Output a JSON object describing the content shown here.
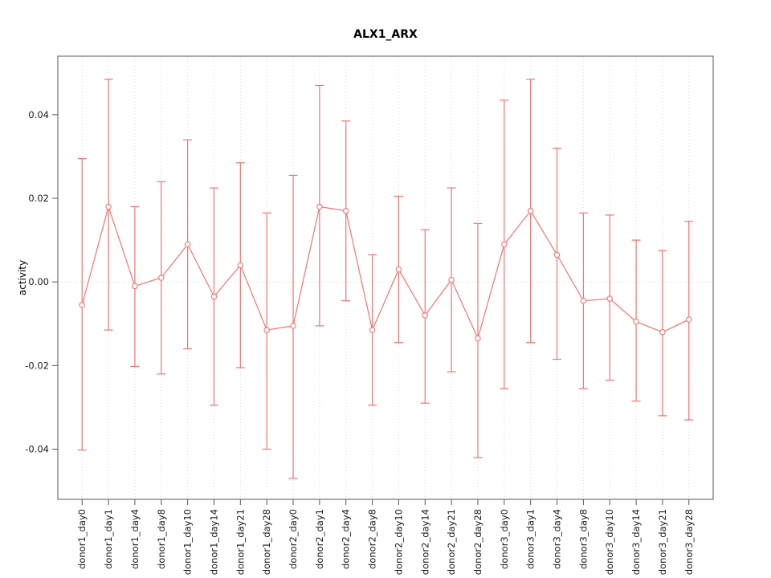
{
  "chart_data": {
    "type": "line",
    "title": "ALX1_ARX",
    "ylabel": "activity",
    "xlabel": "",
    "ylim": [
      -0.052,
      0.054
    ],
    "grid": {
      "vertical_dotted": true,
      "zero_line_dotted": true
    },
    "legend": "none",
    "accent_color": "#f4736e",
    "grid_color": "#d9d9d9",
    "axis_color": "#555555",
    "yticks": {
      "values": [
        -0.04,
        -0.02,
        0.0,
        0.02,
        0.04
      ],
      "labels": [
        "-0.04",
        "-0.02",
        "0.00",
        "0.02",
        "0.04"
      ]
    },
    "categories": [
      "donor1_day0",
      "donor1_day1",
      "donor1_day4",
      "donor1_day8",
      "donor1_day10",
      "donor1_day14",
      "donor1_day21",
      "donor1_day28",
      "donor2_day0",
      "donor2_day1",
      "donor2_day4",
      "donor2_day8",
      "donor2_day10",
      "donor2_day14",
      "donor2_day21",
      "donor2_day28",
      "donor3_day0",
      "donor3_day1",
      "donor3_day4",
      "donor3_day8",
      "donor3_day10",
      "donor3_day14",
      "donor3_day21",
      "donor3_day28"
    ],
    "series": [
      {
        "name": "activity",
        "means": [
          -0.0055,
          0.018,
          -0.001,
          0.001,
          0.009,
          -0.0035,
          0.004,
          -0.0115,
          -0.0105,
          0.018,
          0.017,
          -0.0115,
          0.003,
          -0.008,
          0.0005,
          -0.0135,
          0.009,
          0.017,
          0.0065,
          -0.0045,
          -0.004,
          -0.0095,
          -0.012,
          -0.009
        ],
        "upper": [
          0.0295,
          0.0485,
          0.018,
          0.024,
          0.034,
          0.0225,
          0.0285,
          0.0165,
          0.0255,
          0.047,
          0.0385,
          0.0065,
          0.0205,
          0.0125,
          0.0225,
          0.014,
          0.0435,
          0.0485,
          0.032,
          0.0165,
          0.016,
          0.01,
          0.0075,
          0.0145
        ],
        "lower": [
          -0.0402,
          -0.0115,
          -0.0202,
          -0.022,
          -0.016,
          -0.0295,
          -0.0205,
          -0.04,
          -0.047,
          -0.0105,
          -0.0045,
          -0.0295,
          -0.0145,
          -0.029,
          -0.0215,
          -0.042,
          -0.0255,
          -0.0145,
          -0.0185,
          -0.0255,
          -0.0235,
          -0.0285,
          -0.032,
          -0.033
        ]
      }
    ]
  }
}
